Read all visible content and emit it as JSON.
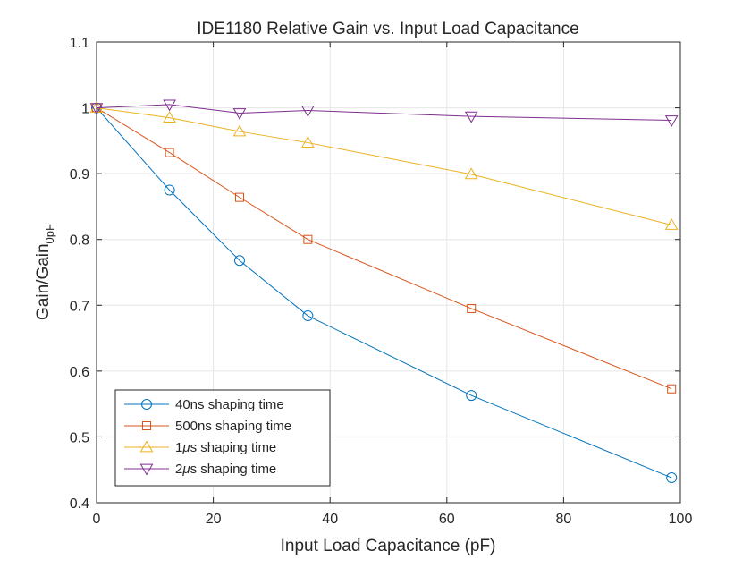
{
  "chart_data": {
    "type": "line",
    "title": "IDE1180 Relative Gain vs. Input Load Capacitance",
    "xlabel": "Input Load Capacitance (pF)",
    "ylabel_main": "Gain/Gain",
    "ylabel_sub": "0pF",
    "xlim": [
      0,
      100
    ],
    "ylim": [
      0.4,
      1.1
    ],
    "xticks": [
      0,
      20,
      40,
      60,
      80,
      100
    ],
    "yticks": [
      0.4,
      0.5,
      0.6,
      0.7,
      0.8,
      0.9,
      1,
      1.1
    ],
    "grid": true,
    "legend_position": "bottom-left",
    "series": [
      {
        "name_prefix": "40ns",
        "name_suffix": " shaping time",
        "color": "#0072BD",
        "marker": "circle",
        "x": [
          0,
          12.5,
          24.5,
          36.2,
          64.2,
          98.5
        ],
        "y": [
          1.0,
          0.875,
          0.768,
          0.684,
          0.563,
          0.438
        ]
      },
      {
        "name_prefix": "500ns",
        "name_suffix": " shaping time",
        "color": "#D95319",
        "marker": "square",
        "x": [
          0,
          12.5,
          24.5,
          36.2,
          64.2,
          98.5
        ],
        "y": [
          1.0,
          0.932,
          0.864,
          0.8,
          0.695,
          0.573
        ]
      },
      {
        "name_prefix": "1",
        "name_greek": "μ",
        "name_suffix": "s shaping time",
        "color": "#EDB120",
        "marker": "triangle-up",
        "x": [
          0,
          12.5,
          24.5,
          36.2,
          64.2,
          98.5
        ],
        "y": [
          1.0,
          0.985,
          0.964,
          0.947,
          0.899,
          0.822
        ]
      },
      {
        "name_prefix": "2",
        "name_greek": "μ",
        "name_suffix": "s shaping time",
        "color": "#7E2F8E",
        "marker": "triangle-down",
        "x": [
          0,
          12.5,
          24.5,
          36.2,
          64.2,
          98.5
        ],
        "y": [
          1.0,
          1.005,
          0.992,
          0.996,
          0.987,
          0.981
        ]
      }
    ]
  }
}
